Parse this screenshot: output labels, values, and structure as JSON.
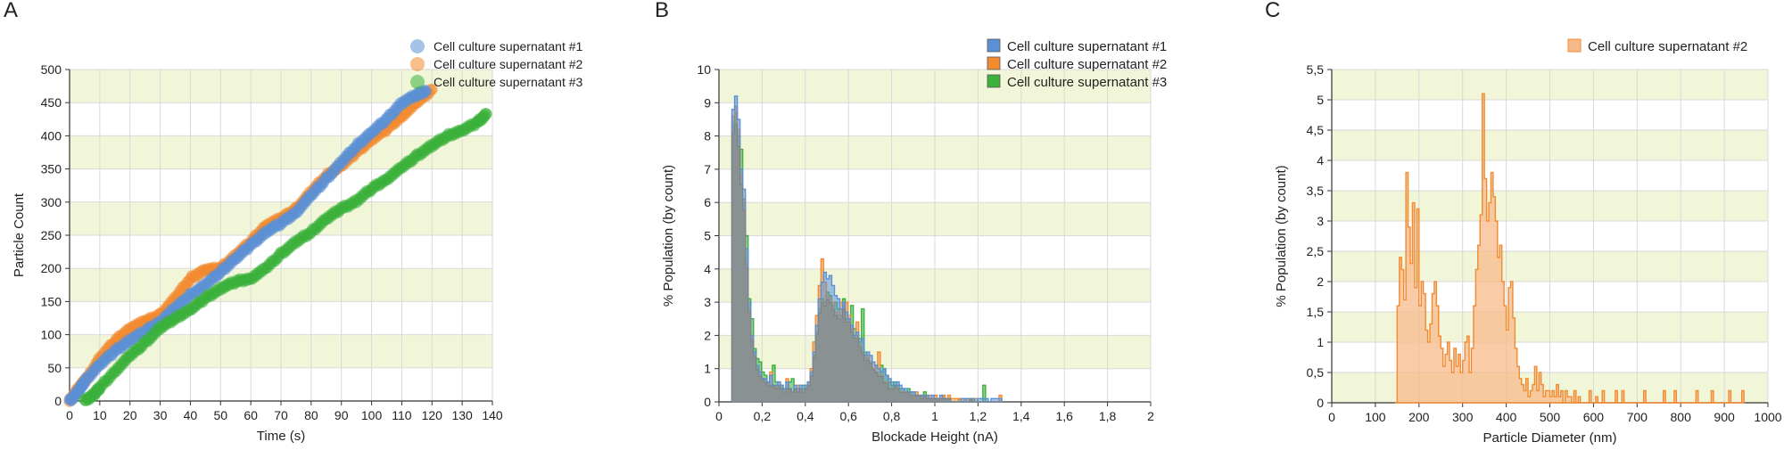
{
  "panels": {
    "a": "A",
    "b": "B",
    "c": "C"
  },
  "colors": {
    "s1": "#5b8fd6",
    "s2": "#f28a30",
    "s3": "#3bb03b",
    "band": "#f1f6d9",
    "grid": "#d9d9d9",
    "overlap": "#8a8f91"
  },
  "chart_data": [
    {
      "type": "scatter",
      "title": "",
      "xlabel": "Time (s)",
      "ylabel": "Particle Count",
      "xlim": [
        0,
        140
      ],
      "ylim": [
        0,
        500
      ],
      "xticks": [
        "0",
        "10",
        "20",
        "30",
        "40",
        "50",
        "60",
        "70",
        "80",
        "90",
        "100",
        "110",
        "120",
        "130",
        "140"
      ],
      "yticks": [
        "0",
        "50",
        "100",
        "150",
        "200",
        "250",
        "300",
        "350",
        "400",
        "450",
        "500"
      ],
      "legend": [
        "Cell culture supernatant #1",
        "Cell culture supernatant #2",
        "Cell culture supernatant #3"
      ],
      "legend_position": "top-right",
      "series": [
        {
          "name": "Cell culture supernatant #1",
          "points": [
            [
              0,
              0
            ],
            [
              3,
              15
            ],
            [
              5,
              30
            ],
            [
              10,
              55
            ],
            [
              15,
              75
            ],
            [
              20,
              92
            ],
            [
              25,
              105
            ],
            [
              30,
              120
            ],
            [
              35,
              140
            ],
            [
              40,
              160
            ],
            [
              45,
              175
            ],
            [
              50,
              195
            ],
            [
              55,
              215
            ],
            [
              60,
              235
            ],
            [
              65,
              255
            ],
            [
              70,
              268
            ],
            [
              75,
              285
            ],
            [
              80,
              310
            ],
            [
              85,
              335
            ],
            [
              90,
              360
            ],
            [
              95,
              385
            ],
            [
              100,
              405
            ],
            [
              105,
              425
            ],
            [
              110,
              450
            ],
            [
              115,
              462
            ],
            [
              118,
              468
            ]
          ]
        },
        {
          "name": "Cell culture supernatant #2",
          "points": [
            [
              0,
              0
            ],
            [
              3,
              20
            ],
            [
              6,
              35
            ],
            [
              10,
              65
            ],
            [
              15,
              90
            ],
            [
              20,
              110
            ],
            [
              25,
              120
            ],
            [
              30,
              130
            ],
            [
              35,
              155
            ],
            [
              40,
              185
            ],
            [
              45,
              198
            ],
            [
              50,
              200
            ],
            [
              55,
              220
            ],
            [
              60,
              240
            ],
            [
              65,
              265
            ],
            [
              70,
              275
            ],
            [
              75,
              290
            ],
            [
              80,
              315
            ],
            [
              85,
              340
            ],
            [
              90,
              355
            ],
            [
              95,
              375
            ],
            [
              100,
              395
            ],
            [
              105,
              410
            ],
            [
              110,
              430
            ],
            [
              115,
              450
            ],
            [
              120,
              470
            ]
          ]
        },
        {
          "name": "Cell culture supernatant #3",
          "points": [
            [
              5,
              0
            ],
            [
              8,
              10
            ],
            [
              10,
              20
            ],
            [
              15,
              45
            ],
            [
              20,
              68
            ],
            [
              25,
              88
            ],
            [
              30,
              110
            ],
            [
              35,
              125
            ],
            [
              40,
              138
            ],
            [
              45,
              155
            ],
            [
              50,
              170
            ],
            [
              55,
              180
            ],
            [
              60,
              185
            ],
            [
              65,
              200
            ],
            [
              70,
              222
            ],
            [
              75,
              240
            ],
            [
              80,
              255
            ],
            [
              85,
              275
            ],
            [
              90,
              290
            ],
            [
              95,
              302
            ],
            [
              100,
              320
            ],
            [
              105,
              335
            ],
            [
              110,
              352
            ],
            [
              115,
              370
            ],
            [
              120,
              385
            ],
            [
              125,
              400
            ],
            [
              130,
              408
            ],
            [
              135,
              420
            ],
            [
              138,
              433
            ]
          ]
        }
      ]
    },
    {
      "type": "histogram",
      "title": "",
      "xlabel": "Blockade Height (nA)",
      "ylabel": "% Population (by count)",
      "xlim": [
        0,
        2
      ],
      "ylim": [
        0,
        10
      ],
      "xticks": [
        "0",
        "0,2",
        "0,4",
        "0,6",
        "0,8",
        "1",
        "1,2",
        "1,4",
        "1,6",
        "1,8",
        "2"
      ],
      "yticks": [
        "0",
        "1",
        "2",
        "3",
        "4",
        "5",
        "6",
        "7",
        "8",
        "9",
        "10"
      ],
      "legend": [
        "Cell culture supernatant #1",
        "Cell culture supernatant #2",
        "Cell culture supernatant #3"
      ],
      "legend_position": "top-right",
      "bin_start": 0.06,
      "bin_width": 0.0125,
      "series": [
        {
          "name": "Cell culture supernatant #1",
          "values": [
            8.8,
            9.2,
            8.5,
            7.0,
            6.4,
            4.6,
            3.0,
            2.0,
            1.5,
            1.1,
            0.9,
            0.7,
            0.7,
            0.6,
            0.8,
            0.5,
            0.5,
            0.6,
            0.5,
            0.4,
            0.6,
            0.4,
            0.3,
            0.5,
            0.4,
            0.5,
            0.4,
            0.5,
            0.6,
            0.9,
            1.5,
            2.3,
            3.1,
            3.6,
            3.9,
            3.7,
            3.8,
            3.5,
            3.2,
            3.1,
            2.8,
            3.0,
            2.7,
            2.5,
            2.3,
            2.0,
            2.1,
            1.8,
            1.9,
            1.4,
            1.5,
            1.4,
            1.2,
            1.1,
            1.0,
            0.9,
            1.0,
            0.8,
            0.7,
            0.6,
            0.5,
            0.6,
            0.5,
            0.4,
            0.4,
            0.3,
            0.3,
            0.3,
            0.2,
            0.2,
            0.2,
            0.2,
            0.2,
            0.1,
            0.2,
            0.1,
            0.1,
            0.2,
            0.1,
            0.1,
            0.1,
            0.0,
            0.0,
            0.0,
            0.0,
            0.1,
            0.1,
            0.1,
            0.1,
            0.1,
            0.0,
            0.1,
            0.1,
            0.1,
            0.1,
            0.0,
            0.1,
            0.1,
            0.1,
            0.1
          ]
        },
        {
          "name": "Cell culture supernatant #2",
          "values": [
            8.6,
            8.9,
            8.2,
            6.8,
            6.0,
            4.2,
            2.8,
            1.9,
            1.4,
            1.0,
            0.8,
            0.7,
            0.6,
            0.5,
            0.9,
            0.5,
            0.4,
            0.5,
            0.4,
            0.3,
            0.7,
            0.4,
            0.3,
            0.4,
            0.5,
            0.4,
            0.3,
            0.5,
            0.6,
            1.0,
            1.8,
            2.6,
            3.5,
            4.3,
            3.6,
            3.2,
            3.1,
            3.0,
            2.7,
            2.6,
            3.0,
            2.9,
            3.0,
            2.6,
            2.2,
            2.0,
            2.4,
            1.7,
            1.5,
            1.3,
            1.4,
            1.2,
            1.0,
            1.1,
            1.5,
            0.8,
            0.6,
            0.6,
            0.4,
            0.4,
            0.5,
            0.4,
            0.3,
            0.3,
            0.3,
            0.3,
            0.2,
            0.2,
            0.3,
            0.2,
            0.1,
            0.2,
            0.1,
            0.2,
            0.1,
            0.2,
            0.1,
            0.1,
            0.2,
            0.1,
            0.2,
            0.1,
            0.1,
            0.1,
            0.1,
            0.0,
            0.1,
            0.0,
            0.1,
            0.0,
            0.1,
            0.0,
            0.0,
            0.0,
            0.0,
            0.0,
            0.0,
            0.0,
            0.0,
            0.2
          ]
        },
        {
          "name": "Cell culture supernatant #3",
          "values": [
            8.4,
            8.7,
            8.0,
            7.6,
            6.1,
            5.0,
            3.1,
            2.5,
            1.6,
            1.3,
            1.2,
            0.9,
            0.8,
            0.6,
            0.5,
            1.1,
            0.6,
            0.5,
            0.5,
            0.4,
            0.4,
            0.6,
            0.7,
            0.4,
            0.3,
            0.4,
            0.5,
            0.4,
            0.5,
            0.8,
            1.4,
            2.1,
            2.8,
            3.1,
            3.0,
            3.3,
            3.2,
            2.9,
            3.0,
            2.8,
            2.6,
            3.1,
            2.5,
            2.5,
            2.9,
            2.2,
            2.0,
            1.9,
            2.8,
            1.5,
            1.3,
            1.2,
            1.0,
            0.9,
            0.8,
            1.1,
            1.0,
            0.8,
            0.6,
            0.5,
            0.6,
            0.5,
            0.4,
            0.4,
            0.3,
            0.4,
            0.3,
            0.3,
            0.2,
            0.2,
            0.2,
            0.3,
            0.2,
            0.1,
            0.1,
            0.1,
            0.1,
            0.1,
            0.2,
            0.1,
            0.1,
            0.0,
            0.0,
            0.0,
            0.1,
            0.0,
            0.0,
            0.0,
            0.1,
            0.1,
            0.0,
            0.0,
            0.0,
            0.5,
            0.0,
            0.0,
            0.0,
            0.0,
            0.0,
            0.0
          ]
        }
      ]
    },
    {
      "type": "histogram",
      "title": "",
      "xlabel": "Particle Diameter (nm)",
      "ylabel": "% Population (by count)",
      "xlim": [
        0,
        1000
      ],
      "ylim": [
        0,
        5.5
      ],
      "xticks": [
        "0",
        "100",
        "200",
        "300",
        "400",
        "500",
        "600",
        "700",
        "800",
        "900",
        "1000"
      ],
      "yticks": [
        "0",
        "0,5",
        "1",
        "1,5",
        "2",
        "2,5",
        "3",
        "3,5",
        "4",
        "4,5",
        "5",
        "5,5"
      ],
      "legend": [
        "Cell culture supernatant #2"
      ],
      "legend_position": "top-right",
      "bin_start": 145,
      "bin_width": 5,
      "series": [
        {
          "name": "Cell culture supernatant #2",
          "values": [
            0,
            1.6,
            2.4,
            2.2,
            1.7,
            3.8,
            2.9,
            2.3,
            3.3,
            1.9,
            3.2,
            1.6,
            2.0,
            1.8,
            1.2,
            1.0,
            1.3,
            1.8,
            2.0,
            1.6,
            1.1,
            0.9,
            0.6,
            0.8,
            1.0,
            0.7,
            0.5,
            0.9,
            0.6,
            0.8,
            0.5,
            0.7,
            1.0,
            1.1,
            0.5,
            0.9,
            1.6,
            2.2,
            2.6,
            3.1,
            5.1,
            3.7,
            3.0,
            3.3,
            3.8,
            3.4,
            3.0,
            2.4,
            2.6,
            2.0,
            1.6,
            1.2,
            1.9,
            2.0,
            1.4,
            0.9,
            0.6,
            0.4,
            0.3,
            0.2,
            0.4,
            0.1,
            0.2,
            0.3,
            0.6,
            0.2,
            0.5,
            0.3,
            0.1,
            0.2,
            0.2,
            0.1,
            0.2,
            0.1,
            0.3,
            0.1,
            0.2,
            0.0,
            0.2,
            0.1,
            0.1,
            0.0,
            0.2,
            0.0,
            0.1,
            0.0,
            0.0,
            0.0,
            0.0,
            0.2,
            0.0,
            0.0,
            0.1,
            0.0,
            0.0,
            0.2,
            0.0,
            0.0,
            0.0,
            0.0,
            0.0,
            0.2,
            0.0,
            0.0,
            0.2,
            0.0,
            0.0,
            0.0,
            0.0,
            0.0,
            0.0,
            0.0,
            0.0,
            0.0,
            0.2,
            0.0,
            0.0,
            0.0,
            0.0,
            0.0,
            0.0,
            0.0,
            0.0,
            0.2,
            0.0,
            0.0,
            0.0,
            0.0,
            0.2,
            0.0,
            0.0,
            0.0,
            0.0,
            0.0,
            0.0,
            0.0,
            0.0,
            0.0,
            0.2,
            0.0,
            0.0,
            0.0,
            0.0,
            0.0,
            0.0,
            0.2,
            0.0,
            0.0,
            0.0,
            0.0,
            0.0,
            0.0,
            0.0,
            0.2,
            0.0,
            0.0,
            0.0,
            0.0,
            0.0,
            0.2
          ]
        }
      ]
    }
  ]
}
